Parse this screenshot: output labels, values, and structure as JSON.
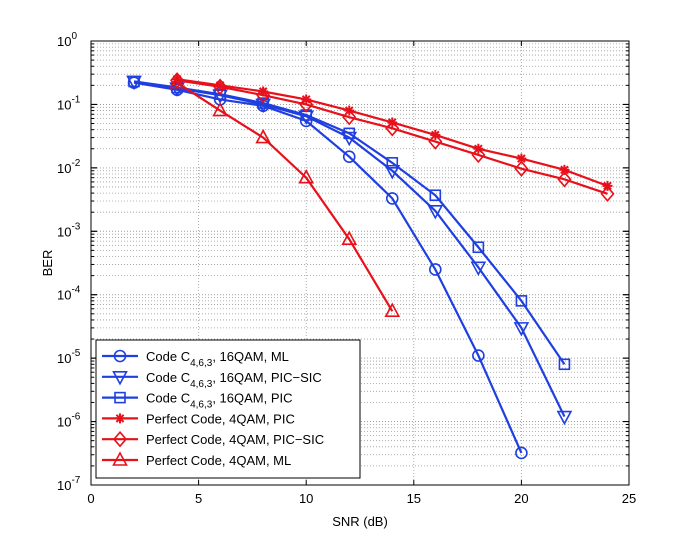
{
  "chart_data": {
    "type": "line",
    "title": "",
    "xlabel": "SNR (dB)",
    "ylabel": "BER",
    "yscale": "log",
    "xlim": [
      0,
      25
    ],
    "ylim": [
      1e-07,
      1
    ],
    "grid": true,
    "legend_position": "bottom-left",
    "x_ticks": [
      "0",
      "5",
      "10",
      "15",
      "20",
      "25"
    ],
    "y_ticks": [
      {
        "base": "10",
        "exp": "0"
      },
      {
        "base": "10",
        "exp": "-1"
      },
      {
        "base": "10",
        "exp": "-2"
      },
      {
        "base": "10",
        "exp": "-3"
      },
      {
        "base": "10",
        "exp": "-4"
      },
      {
        "base": "10",
        "exp": "-5"
      },
      {
        "base": "10",
        "exp": "-6"
      },
      {
        "base": "10",
        "exp": "-7"
      }
    ],
    "series": [
      {
        "name": "Code C4,6,3, 16QAM, ML",
        "legend_prefix": "Code C",
        "legend_sub": "4,6,3",
        "legend_suffix": ", 16QAM, ML",
        "color": "#1f3fe0",
        "marker": "circle",
        "x": [
          2,
          4,
          6,
          8,
          10,
          12,
          14,
          16,
          18,
          20
        ],
        "values": [
          0.22,
          0.17,
          0.12,
          0.095,
          0.055,
          0.015,
          0.0033,
          0.00025,
          1.1e-05,
          3.2e-07
        ]
      },
      {
        "name": "Code C4,6,3, 16QAM, PIC-SIC",
        "legend_prefix": "Code C",
        "legend_sub": "4,6,3",
        "legend_suffix": ", 16QAM, PIC−SIC",
        "color": "#1f3fe0",
        "marker": "triangle-down",
        "x": [
          2,
          4,
          6,
          8,
          10,
          12,
          14,
          16,
          18,
          20,
          22
        ],
        "values": [
          0.23,
          0.18,
          0.14,
          0.1,
          0.065,
          0.03,
          0.009,
          0.0021,
          0.00027,
          3e-05,
          1.2e-06
        ]
      },
      {
        "name": "Code C4,6,3, 16QAM, PIC",
        "legend_prefix": "Code C",
        "legend_sub": "4,6,3",
        "legend_suffix": ", 16QAM, PIC",
        "color": "#1f3fe0",
        "marker": "square",
        "x": [
          2,
          4,
          6,
          8,
          10,
          12,
          14,
          16,
          18,
          20,
          22
        ],
        "values": [
          0.23,
          0.185,
          0.145,
          0.105,
          0.068,
          0.035,
          0.012,
          0.0037,
          0.00056,
          8e-05,
          8e-06
        ]
      },
      {
        "name": "Perfect Code, 4QAM, PIC",
        "legend_prefix": "Perfect Code, 4QAM, PIC",
        "legend_sub": "",
        "legend_suffix": "",
        "color": "#e8101a",
        "marker": "star",
        "x": [
          4,
          6,
          8,
          10,
          12,
          14,
          16,
          18,
          20,
          22,
          24
        ],
        "values": [
          0.25,
          0.2,
          0.16,
          0.12,
          0.08,
          0.052,
          0.033,
          0.02,
          0.014,
          0.0093,
          0.0052
        ]
      },
      {
        "name": "Perfect Code, 4QAM, PIC-SIC",
        "legend_prefix": "Perfect Code, 4QAM, PIC−SIC",
        "legend_sub": "",
        "legend_suffix": "",
        "color": "#e8101a",
        "marker": "diamond",
        "x": [
          4,
          6,
          8,
          10,
          12,
          14,
          16,
          18,
          20,
          22,
          24
        ],
        "values": [
          0.24,
          0.19,
          0.14,
          0.1,
          0.063,
          0.042,
          0.026,
          0.016,
          0.0097,
          0.0066,
          0.0039
        ]
      },
      {
        "name": "Perfect Code, 4QAM, ML",
        "legend_prefix": "Perfect Code, 4QAM, ML",
        "legend_sub": "",
        "legend_suffix": "",
        "color": "#e8101a",
        "marker": "triangle-up",
        "x": [
          4,
          6,
          8,
          10,
          12,
          14
        ],
        "values": [
          0.22,
          0.08,
          0.03,
          0.007,
          0.00075,
          5.5e-05
        ]
      }
    ]
  }
}
